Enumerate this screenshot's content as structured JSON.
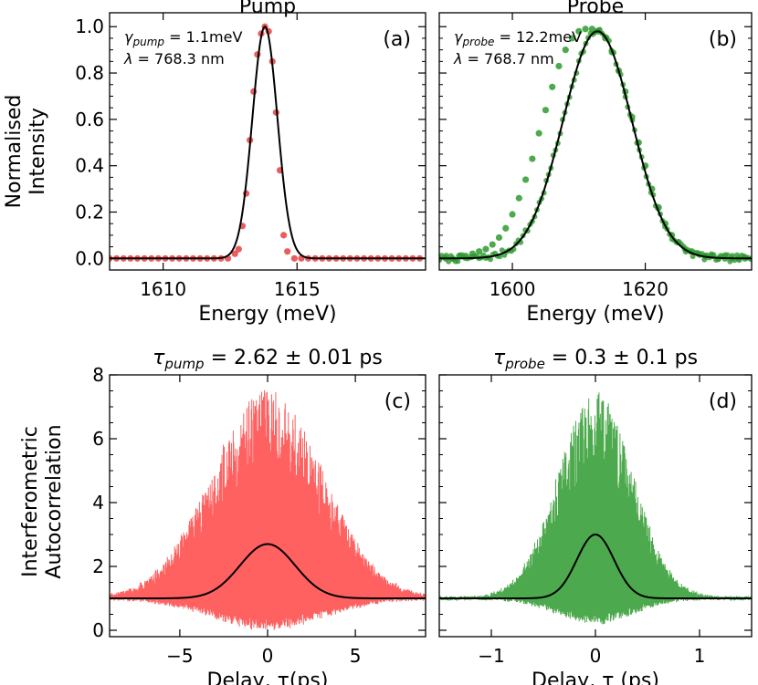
{
  "figure": {
    "ylabel_top": [
      "Normalised",
      "Intensity"
    ],
    "ylabel_bottom": [
      "Interferometric",
      "Autocorrelation"
    ]
  },
  "chart_data": [
    {
      "id": "a",
      "type": "scatter",
      "title": "Pump",
      "panel_label": "(a)",
      "annotations": [
        {
          "symbol": "γ",
          "subscript": "pump",
          "text": " = 1.1meV"
        },
        {
          "symbol": "λ",
          "subscript": "",
          "text": " = 768.3 nm"
        }
      ],
      "xlabel": "Energy (meV)",
      "ylabel": "",
      "xlim": [
        1608,
        1619.8
      ],
      "ylim": [
        -0.05,
        1.06
      ],
      "xticks": [
        1610,
        1615
      ],
      "xtick_labels": [
        "1610",
        "1615"
      ],
      "yticks": [
        0,
        0.2,
        0.4,
        0.6,
        0.8,
        1.0
      ],
      "ytick_labels": [
        "0.0",
        "0.2",
        "0.4",
        "0.6",
        "0.8",
        "1.0"
      ],
      "series": [
        {
          "name": "data",
          "kind": "points",
          "color": "#e84040",
          "x": [
            1608.0,
            1608.26,
            1608.52,
            1608.78,
            1609.04,
            1609.3,
            1609.56,
            1609.82,
            1610.08,
            1610.34,
            1610.6,
            1610.86,
            1611.12,
            1611.38,
            1611.64,
            1611.9,
            1612.16,
            1612.42,
            1612.68,
            1612.82,
            1612.96,
            1613.1,
            1613.24,
            1613.38,
            1613.52,
            1613.66,
            1613.8,
            1613.94,
            1614.08,
            1614.22,
            1614.36,
            1614.5,
            1614.64,
            1614.9,
            1615.16,
            1615.42,
            1615.68,
            1615.94,
            1616.2,
            1616.46,
            1616.72,
            1616.98,
            1617.24,
            1617.5,
            1617.76,
            1618.02,
            1618.28,
            1618.54,
            1618.8,
            1619.06,
            1619.32,
            1619.58
          ],
          "y": [
            0.0,
            0.0,
            0.0,
            0.0,
            0.0,
            0.0,
            0.0,
            0.0,
            0.0,
            0.0,
            0.0,
            0.0,
            0.0,
            0.0,
            0.0,
            0.0,
            0.0,
            0.0,
            0.02,
            0.04,
            0.14,
            0.28,
            0.51,
            0.72,
            0.88,
            0.97,
            1.0,
            0.98,
            0.85,
            0.63,
            0.38,
            0.1,
            0.03,
            0.0,
            0.0,
            0.0,
            0.0,
            0.0,
            0.0,
            0.0,
            0.0,
            0.0,
            0.0,
            0.0,
            0.0,
            0.0,
            0.0,
            0.0,
            0.0,
            0.0,
            0.0,
            0.0
          ]
        },
        {
          "name": "fit",
          "kind": "gaussian",
          "color": "#000000",
          "center": 1613.8,
          "fwhm": 1.1,
          "amplitude": 1.0,
          "offset": 0.0
        }
      ]
    },
    {
      "id": "b",
      "type": "scatter",
      "title": "Probe",
      "panel_label": "(b)",
      "annotations": [
        {
          "symbol": "γ",
          "subscript": "probe",
          "text": " = 12.2meV"
        },
        {
          "symbol": "λ",
          "subscript": "",
          "text": " = 768.7 nm"
        }
      ],
      "xlabel": "Energy (meV)",
      "ylabel": "",
      "xlim": [
        1589,
        1636
      ],
      "ylim": [
        -0.05,
        1.06
      ],
      "xticks": [
        1600,
        1620
      ],
      "xtick_labels": [
        "1600",
        "1620"
      ],
      "yticks": [
        0,
        0.2,
        0.4,
        0.6,
        0.8,
        1.0
      ],
      "ytick_labels": [],
      "series": [
        {
          "name": "data",
          "kind": "points",
          "color": "#2e9a2e",
          "x": [
            1589,
            1590,
            1591,
            1592,
            1593,
            1594,
            1595,
            1596,
            1597,
            1598,
            1599,
            1600,
            1601,
            1602,
            1603,
            1604,
            1605,
            1606,
            1607,
            1608,
            1609,
            1610,
            1611,
            1612,
            1613,
            1614,
            1615,
            1616,
            1617,
            1618,
            1619,
            1620,
            1621,
            1622,
            1623,
            1624,
            1625,
            1626,
            1627,
            1628,
            1629,
            1630,
            1631,
            1632,
            1633,
            1634,
            1635
          ],
          "y": [
            0.0,
            0.0,
            0.0,
            0.01,
            0.01,
            0.02,
            0.03,
            0.04,
            0.06,
            0.09,
            0.13,
            0.19,
            0.26,
            0.34,
            0.43,
            0.54,
            0.64,
            0.74,
            0.83,
            0.9,
            0.95,
            0.98,
            0.99,
            0.99,
            0.98,
            0.95,
            0.89,
            0.81,
            0.72,
            0.61,
            0.5,
            0.4,
            0.3,
            0.22,
            0.15,
            0.1,
            0.07,
            0.04,
            0.03,
            0.02,
            0.01,
            0.01,
            0.0,
            0.0,
            0.0,
            0.0,
            0.0
          ]
        },
        {
          "name": "fit",
          "kind": "gaussian",
          "color": "#000000",
          "center": 1612.8,
          "fwhm": 12.2,
          "amplitude": 0.98,
          "offset": 0.0
        }
      ]
    },
    {
      "id": "c",
      "type": "line",
      "title": "τ",
      "title_subscript": "pump",
      "title_value": " = 2.62 ± 0.01 ps",
      "panel_label": "(c)",
      "xlabel": "Delay, τ(ps)",
      "ylabel": "",
      "xlim": [
        -9.0,
        9.0
      ],
      "ylim": [
        -0.2,
        8.0
      ],
      "xticks": [
        -5,
        0,
        5
      ],
      "xtick_labels": [
        "−5",
        "0",
        "5"
      ],
      "yticks": [
        0,
        2,
        4,
        6,
        8
      ],
      "ytick_labels": [
        "0",
        "2",
        "4",
        "6",
        "8"
      ],
      "series": [
        {
          "name": "interferometric autocorrelation",
          "kind": "fringes",
          "color": "#ff5050",
          "baseline": 1.0,
          "peak": 7.6,
          "trough": 0.0,
          "width": 2.62,
          "x_range": [
            -9.0,
            9.0
          ]
        },
        {
          "name": "fit",
          "kind": "gaussian",
          "color": "#000000",
          "center": 0.0,
          "fwhm": 3.7,
          "amplitude": 1.7,
          "offset": 1.0
        }
      ]
    },
    {
      "id": "d",
      "type": "line",
      "title": "τ",
      "title_subscript": "probe",
      "title_value": " = 0.3 ± 0.1 ps",
      "panel_label": "(d)",
      "xlabel": "Delay, τ (ps)",
      "ylabel": "",
      "xlim": [
        -1.5,
        1.5
      ],
      "ylim": [
        -0.2,
        8.0
      ],
      "xticks": [
        -1,
        0,
        1
      ],
      "xtick_labels": [
        "−1",
        "0",
        "1"
      ],
      "yticks": [
        0,
        2,
        4,
        6,
        8
      ],
      "ytick_labels": [],
      "series": [
        {
          "name": "interferometric autocorrelation",
          "kind": "fringes",
          "color": "#3aa03a",
          "baseline": 1.0,
          "peak": 7.5,
          "trough": 0.2,
          "width": 0.3,
          "x_range": [
            -1.5,
            1.5
          ]
        },
        {
          "name": "fit",
          "kind": "gaussian",
          "color": "#000000",
          "center": 0.0,
          "fwhm": 0.42,
          "amplitude": 2.0,
          "offset": 1.0
        }
      ]
    }
  ]
}
